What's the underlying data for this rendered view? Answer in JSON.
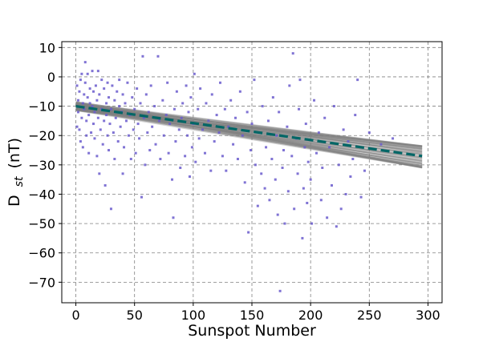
{
  "chart_data": {
    "type": "scatter",
    "title": "",
    "xlabel": "Sunspot Number",
    "ylabel_main": "D",
    "ylabel_sub": "st",
    "ylabel_unit": "(nT)",
    "xlim": [
      -12,
      312
    ],
    "ylim": [
      -77,
      12
    ],
    "xticks": [
      0,
      50,
      100,
      150,
      200,
      250,
      300
    ],
    "yticks": [
      10,
      0,
      -10,
      -20,
      -30,
      -40,
      -50,
      -60,
      -70
    ],
    "grid": true,
    "colors": {
      "points": "#6a5acd",
      "fit_line": "#006666",
      "ensemble": "#7f7f7f"
    },
    "fit_line": {
      "x": [
        0,
        295
      ],
      "y": [
        -10.0,
        -27.0
      ]
    },
    "ensemble_band": {
      "x": [
        0,
        295
      ],
      "upper": [
        -8.5,
        -23.5
      ],
      "lower": [
        -11.5,
        -31.0
      ]
    },
    "points": [
      [
        1,
        -17
      ],
      [
        1,
        -3
      ],
      [
        2,
        -8
      ],
      [
        2,
        -12
      ],
      [
        3,
        -5
      ],
      [
        3,
        -18
      ],
      [
        4,
        -1
      ],
      [
        4,
        -22
      ],
      [
        5,
        -14
      ],
      [
        5,
        1
      ],
      [
        6,
        -9
      ],
      [
        6,
        -24
      ],
      [
        7,
        -6
      ],
      [
        7,
        -11
      ],
      [
        8,
        -2
      ],
      [
        8,
        5
      ],
      [
        9,
        -15
      ],
      [
        9,
        -20
      ],
      [
        10,
        -7
      ],
      [
        10,
        1
      ],
      [
        11,
        -13
      ],
      [
        11,
        -26
      ],
      [
        12,
        -4
      ],
      [
        12,
        -9
      ],
      [
        13,
        -19
      ],
      [
        14,
        -10
      ],
      [
        14,
        2
      ],
      [
        15,
        -16
      ],
      [
        15,
        -5
      ],
      [
        16,
        -21
      ],
      [
        16,
        -12
      ],
      [
        17,
        -3
      ],
      [
        18,
        -8
      ],
      [
        18,
        -27
      ],
      [
        19,
        -14
      ],
      [
        19,
        2
      ],
      [
        20,
        -6
      ],
      [
        20,
        -33
      ],
      [
        21,
        -18
      ],
      [
        22,
        -11
      ],
      [
        22,
        -1
      ],
      [
        23,
        -23
      ],
      [
        24,
        -4
      ],
      [
        24,
        -15
      ],
      [
        25,
        -37
      ],
      [
        26,
        -9
      ],
      [
        26,
        -13
      ],
      [
        27,
        -2
      ],
      [
        27,
        -20
      ],
      [
        28,
        -25
      ],
      [
        28,
        -7
      ],
      [
        29,
        -16
      ],
      [
        30,
        -45
      ],
      [
        30,
        -11
      ],
      [
        31,
        -3
      ],
      [
        32,
        -19
      ],
      [
        33,
        -8
      ],
      [
        33,
        -28
      ],
      [
        34,
        -14
      ],
      [
        35,
        -5
      ],
      [
        36,
        -22
      ],
      [
        37,
        -10
      ],
      [
        37,
        -1
      ],
      [
        38,
        -17
      ],
      [
        39,
        -12
      ],
      [
        40,
        -33
      ],
      [
        40,
        -6
      ],
      [
        41,
        -24
      ],
      [
        42,
        -9
      ],
      [
        43,
        -15
      ],
      [
        44,
        -2
      ],
      [
        45,
        -20
      ],
      [
        46,
        -13
      ],
      [
        47,
        -28
      ],
      [
        48,
        -7
      ],
      [
        49,
        -18
      ],
      [
        50,
        -11
      ],
      [
        51,
        -26
      ],
      [
        52,
        -4
      ],
      [
        53,
        -16
      ],
      [
        54,
        -21
      ],
      [
        55,
        -9
      ],
      [
        56,
        -41
      ],
      [
        57,
        7
      ],
      [
        58,
        -14
      ],
      [
        59,
        -30
      ],
      [
        60,
        -6
      ],
      [
        61,
        -19
      ],
      [
        62,
        -12
      ],
      [
        63,
        -25
      ],
      [
        64,
        -3
      ],
      [
        65,
        -17
      ],
      [
        67,
        -10
      ],
      [
        68,
        -23
      ],
      [
        70,
        7
      ],
      [
        71,
        -15
      ],
      [
        72,
        -28
      ],
      [
        74,
        -8
      ],
      [
        75,
        -20
      ],
      [
        77,
        -13
      ],
      [
        78,
        -2
      ],
      [
        79,
        -26
      ],
      [
        80,
        -16
      ],
      [
        82,
        -35
      ],
      [
        83,
        -48
      ],
      [
        84,
        -11
      ],
      [
        85,
        -22
      ],
      [
        86,
        -5
      ],
      [
        88,
        -18
      ],
      [
        89,
        -31
      ],
      [
        90,
        -14
      ],
      [
        91,
        -9
      ],
      [
        93,
        -27
      ],
      [
        94,
        -3
      ],
      [
        95,
        -20
      ],
      [
        96,
        -12
      ],
      [
        97,
        -34
      ],
      [
        98,
        -7
      ],
      [
        99,
        -24
      ],
      [
        100,
        -16
      ],
      [
        101,
        1
      ],
      [
        102,
        -29
      ],
      [
        104,
        -11
      ],
      [
        105,
        -21
      ],
      [
        106,
        -4
      ],
      [
        108,
        -18
      ],
      [
        110,
        -26
      ],
      [
        111,
        -9
      ],
      [
        113,
        -15
      ],
      [
        115,
        -32
      ],
      [
        116,
        -6
      ],
      [
        118,
        -22
      ],
      [
        120,
        -13
      ],
      [
        122,
        -19
      ],
      [
        123,
        -2
      ],
      [
        125,
        -27
      ],
      [
        127,
        -11
      ],
      [
        128,
        -32
      ],
      [
        130,
        -17
      ],
      [
        132,
        -8
      ],
      [
        134,
        -23
      ],
      [
        136,
        -14
      ],
      [
        138,
        -28
      ],
      [
        140,
        -5
      ],
      [
        142,
        -20
      ],
      [
        144,
        -36
      ],
      [
        146,
        -12
      ],
      [
        147,
        -53
      ],
      [
        149,
        -25
      ],
      [
        150,
        -16
      ],
      [
        152,
        -1
      ],
      [
        153,
        -30
      ],
      [
        155,
        -44
      ],
      [
        156,
        -19
      ],
      [
        158,
        -33
      ],
      [
        159,
        -10
      ],
      [
        161,
        -38
      ],
      [
        162,
        -24
      ],
      [
        164,
        -15
      ],
      [
        165,
        -42
      ],
      [
        167,
        -28
      ],
      [
        168,
        -7
      ],
      [
        170,
        -35
      ],
      [
        171,
        -20
      ],
      [
        172,
        -47
      ],
      [
        173,
        -12
      ],
      [
        174,
        -73
      ],
      [
        176,
        -31
      ],
      [
        177,
        -25
      ],
      [
        178,
        -50
      ],
      [
        180,
        -17
      ],
      [
        181,
        -39
      ],
      [
        182,
        -3
      ],
      [
        184,
        -27
      ],
      [
        185,
        8
      ],
      [
        186,
        -45
      ],
      [
        188,
        -21
      ],
      [
        189,
        -33
      ],
      [
        190,
        -11
      ],
      [
        191,
        -1
      ],
      [
        193,
        -55
      ],
      [
        194,
        -38
      ],
      [
        195,
        -24
      ],
      [
        196,
        -16
      ],
      [
        197,
        -43
      ],
      [
        198,
        -29
      ],
      [
        200,
        -35
      ],
      [
        201,
        -50
      ],
      [
        203,
        -8
      ],
      [
        205,
        -26
      ],
      [
        207,
        -19
      ],
      [
        209,
        -42
      ],
      [
        210,
        -31
      ],
      [
        212,
        -14
      ],
      [
        214,
        -48
      ],
      [
        216,
        -24
      ],
      [
        218,
        -37
      ],
      [
        220,
        -10
      ],
      [
        222,
        -51
      ],
      [
        224,
        -30
      ],
      [
        226,
        -45
      ],
      [
        228,
        -18
      ],
      [
        230,
        -40
      ],
      [
        232,
        -22
      ],
      [
        234,
        -34
      ],
      [
        236,
        -28
      ],
      [
        238,
        -13
      ],
      [
        240,
        -1
      ],
      [
        243,
        -41
      ],
      [
        246,
        -32
      ],
      [
        250,
        -19
      ],
      [
        260,
        -23
      ],
      [
        270,
        -21
      ]
    ]
  }
}
